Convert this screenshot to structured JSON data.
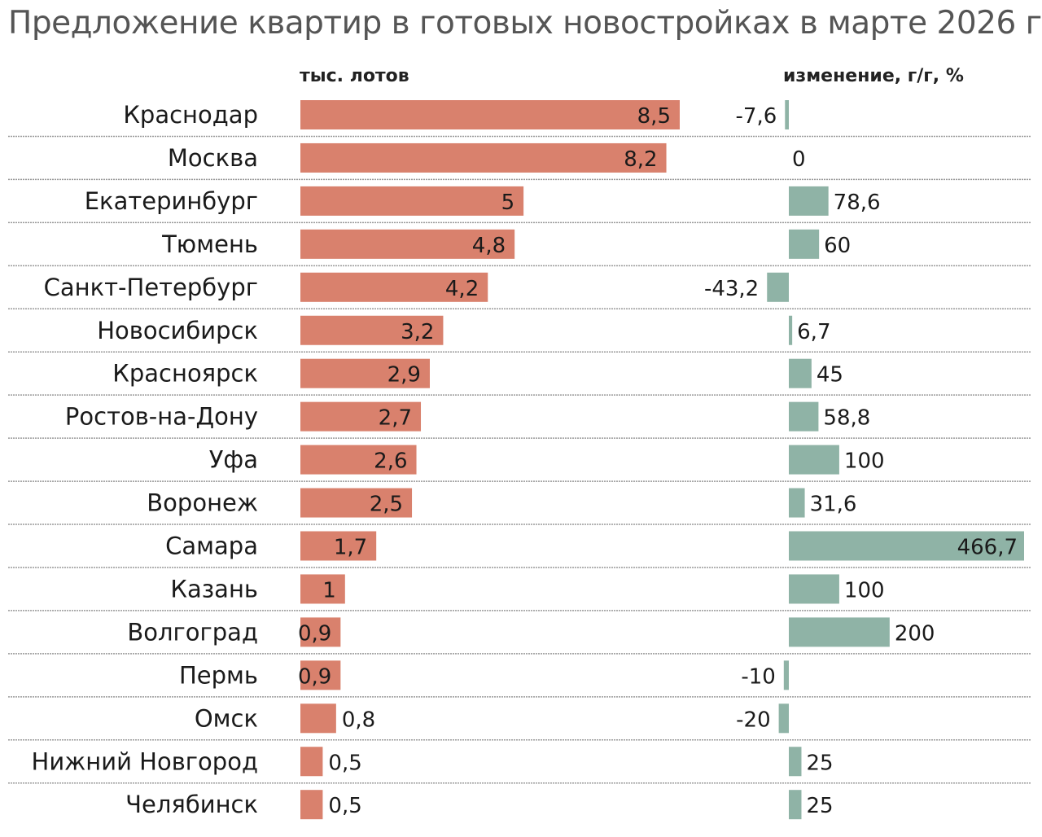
{
  "title": "Предложение квартир в готовых новостройках в марте 2026 г.",
  "colors": {
    "volume_bar": "#d9816d",
    "change_bar": "#8fb3a6",
    "text": "#1a1a1a",
    "title": "#555555"
  },
  "chart_data": [
    {
      "type": "bar",
      "orientation": "horizontal",
      "header": "тыс. лотов",
      "categories": [
        "Краснодар",
        "Москва",
        "Екатеринбург",
        "Тюмень",
        "Санкт-Петербург",
        "Новосибирск",
        "Красноярск",
        "Ростов-на-Дону",
        "Уфа",
        "Воронеж",
        "Самара",
        "Казань",
        "Волгоград",
        "Пермь",
        "Омск",
        "Нижний Новгород",
        "Челябинск"
      ],
      "values": [
        8.5,
        8.2,
        5,
        4.8,
        4.2,
        3.2,
        2.9,
        2.7,
        2.6,
        2.5,
        1.7,
        1,
        0.9,
        0.9,
        0.8,
        0.5,
        0.5
      ],
      "labels": [
        "8,5",
        "8,2",
        "5",
        "4,8",
        "4,2",
        "3,2",
        "2,9",
        "2,7",
        "2,6",
        "2,5",
        "1,7",
        "1",
        "0,9",
        "0,9",
        "0,8",
        "0,5",
        "0,5"
      ],
      "xlim": [
        0,
        8.5
      ],
      "grid": false
    },
    {
      "type": "bar",
      "orientation": "horizontal",
      "header": "изменение, г/г, %",
      "categories": [
        "Краснодар",
        "Москва",
        "Екатеринбург",
        "Тюмень",
        "Санкт-Петербург",
        "Новосибирск",
        "Красноярск",
        "Ростов-на-Дону",
        "Уфа",
        "Воронеж",
        "Самара",
        "Казань",
        "Волгоград",
        "Пермь",
        "Омск",
        "Нижний Новгород",
        "Челябинск"
      ],
      "values": [
        -7.6,
        0,
        78.6,
        60,
        -43.2,
        6.7,
        45,
        58.8,
        100,
        31.6,
        466.7,
        100,
        200,
        -10,
        -20,
        25,
        25
      ],
      "labels": [
        "-7,6",
        "0",
        "78,6",
        "60",
        "-43,2",
        "6,7",
        "45",
        "58,8",
        "100",
        "31,6",
        "466,7",
        "100",
        "200",
        "-10",
        "-20",
        "25",
        "25"
      ],
      "xlim": [
        -43.2,
        466.7
      ],
      "grid": false
    }
  ]
}
